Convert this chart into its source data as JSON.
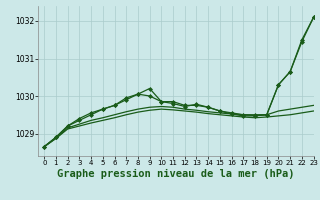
{
  "background_color": "#cce8e8",
  "plot_bg_color": "#cce8e8",
  "grid_color": "#aacccc",
  "line_color": "#1a5c1a",
  "xlabel": "Graphe pression niveau de la mer (hPa)",
  "xlabel_fontsize": 7.5,
  "xlim": [
    -0.5,
    23
  ],
  "ylim": [
    1028.4,
    1032.4
  ],
  "yticks": [
    1029,
    1030,
    1031,
    1032
  ],
  "xticks": [
    0,
    1,
    2,
    3,
    4,
    5,
    6,
    7,
    8,
    9,
    10,
    11,
    12,
    13,
    14,
    15,
    16,
    17,
    18,
    19,
    20,
    21,
    22,
    23
  ],
  "series": [
    {
      "y": [
        1028.65,
        1028.9,
        1029.2,
        1029.4,
        1029.55,
        1029.65,
        1029.75,
        1029.95,
        1030.05,
        1030.0,
        1029.85,
        1029.85,
        1029.75,
        1029.75,
        1029.7,
        1029.6,
        1029.55,
        1029.5,
        1029.5,
        1029.5,
        1030.3,
        1030.65,
        1031.5,
        1032.1
      ],
      "marker": true,
      "lw": 0.9
    },
    {
      "y": [
        1028.65,
        1028.9,
        1029.2,
        1029.35,
        1029.5,
        1029.65,
        1029.75,
        1029.9,
        1030.05,
        1030.2,
        1029.85,
        1029.8,
        1029.72,
        1029.78,
        1029.7,
        1029.6,
        1029.52,
        1029.47,
        1029.47,
        1029.5,
        1030.3,
        1030.65,
        1031.45,
        1032.1
      ],
      "marker": true,
      "lw": 0.9
    },
    {
      "y": [
        1028.65,
        1028.87,
        1029.15,
        1029.25,
        1029.35,
        1029.42,
        1029.5,
        1029.58,
        1029.65,
        1029.7,
        1029.72,
        1029.7,
        1029.65,
        1029.62,
        1029.58,
        1029.55,
        1029.52,
        1029.5,
        1029.48,
        1029.5,
        1029.6,
        1029.65,
        1029.7,
        1029.75
      ],
      "marker": false,
      "lw": 0.9
    },
    {
      "y": [
        1028.65,
        1028.87,
        1029.12,
        1029.2,
        1029.28,
        1029.35,
        1029.42,
        1029.5,
        1029.57,
        1029.62,
        1029.65,
        1029.63,
        1029.6,
        1029.57,
        1029.53,
        1029.5,
        1029.47,
        1029.44,
        1029.42,
        1029.44,
        1029.47,
        1029.5,
        1029.55,
        1029.6
      ],
      "marker": false,
      "lw": 0.9
    }
  ],
  "marker_style": "D",
  "marker_size": 2.0
}
